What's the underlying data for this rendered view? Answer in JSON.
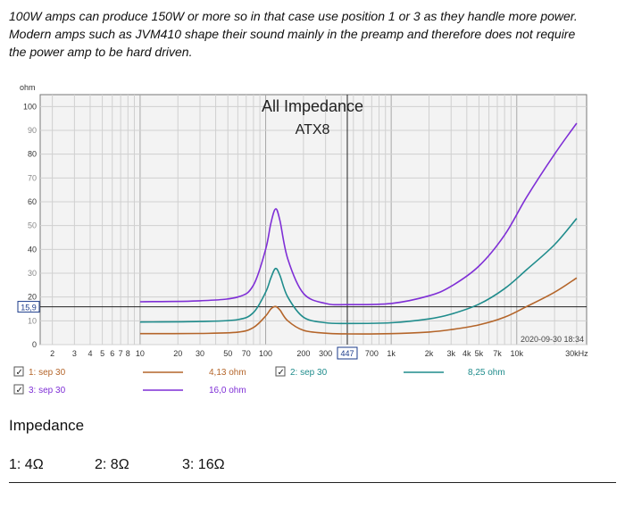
{
  "article": {
    "intro_lines": [
      "100W amps can produce 150W or more so in that case use position 1 or 3 as they handle more power.",
      "Modern amps such as JVM410 shape their sound mainly in the preamp and therefore does not require",
      "the power amp to be hard driven."
    ],
    "heading": "Impedance",
    "ratings": [
      "1: 4Ω",
      "2: 8Ω",
      "3: 16Ω"
    ]
  },
  "chart_data": {
    "type": "line",
    "title": "All Impedance",
    "subtitle": "ATX8",
    "ylabel": "ohm",
    "xunit": "kHz",
    "xscale": "log",
    "xlim": [
      1.6,
      36000
    ],
    "ylim": [
      0,
      105
    ],
    "grid": true,
    "timestamp": "2020-09-30 18:34",
    "cursor": {
      "x_label": "447",
      "y_label": "15,9"
    },
    "y_ticks": [
      "0",
      "10",
      "20",
      "30",
      "40",
      "50",
      "60",
      "70",
      "80",
      "90",
      "100"
    ],
    "x_ticks": [
      {
        "v": 2,
        "label": "2"
      },
      {
        "v": 3,
        "label": "3"
      },
      {
        "v": 4,
        "label": "4"
      },
      {
        "v": 5,
        "label": "5"
      },
      {
        "v": 6,
        "label": "6"
      },
      {
        "v": 7,
        "label": "7"
      },
      {
        "v": 8,
        "label": "8"
      },
      {
        "v": 10,
        "label": "10"
      },
      {
        "v": 20,
        "label": "20"
      },
      {
        "v": 30,
        "label": "30"
      },
      {
        "v": 50,
        "label": "50"
      },
      {
        "v": 70,
        "label": "70"
      },
      {
        "v": 100,
        "label": "100"
      },
      {
        "v": 200,
        "label": "200"
      },
      {
        "v": 300,
        "label": "300"
      },
      {
        "v": 700,
        "label": "700"
      },
      {
        "v": 1000,
        "label": "1k"
      },
      {
        "v": 2000,
        "label": "2k"
      },
      {
        "v": 3000,
        "label": "3k"
      },
      {
        "v": 4000,
        "label": "4k"
      },
      {
        "v": 5000,
        "label": "5k"
      },
      {
        "v": 7000,
        "label": "7k"
      },
      {
        "v": 10000,
        "label": "10k"
      },
      {
        "v": 30000,
        "label": "30kHz"
      }
    ],
    "series": [
      {
        "name": "1: sep 30",
        "value_label": "4,13 ohm",
        "color": "#b4652a",
        "points": [
          [
            10,
            4.6
          ],
          [
            30,
            4.7
          ],
          [
            60,
            5.2
          ],
          [
            80,
            7.2
          ],
          [
            100,
            12
          ],
          [
            110,
            15
          ],
          [
            120,
            16
          ],
          [
            130,
            14.5
          ],
          [
            150,
            10
          ],
          [
            200,
            6
          ],
          [
            300,
            4.8
          ],
          [
            447,
            4.5
          ],
          [
            1000,
            4.6
          ],
          [
            2000,
            5.3
          ],
          [
            3000,
            6.3
          ],
          [
            5000,
            8.3
          ],
          [
            8000,
            11.5
          ],
          [
            12000,
            16
          ],
          [
            20000,
            22
          ],
          [
            30000,
            28
          ]
        ]
      },
      {
        "name": "2: sep 30",
        "value_label": "8,25 ohm",
        "color": "#1f8c8c",
        "points": [
          [
            10,
            9.5
          ],
          [
            30,
            9.7
          ],
          [
            60,
            10.5
          ],
          [
            80,
            13.5
          ],
          [
            100,
            22
          ],
          [
            110,
            28
          ],
          [
            120,
            32
          ],
          [
            130,
            29
          ],
          [
            150,
            20
          ],
          [
            200,
            11.5
          ],
          [
            300,
            9.2
          ],
          [
            447,
            8.9
          ],
          [
            1000,
            9.2
          ],
          [
            2000,
            10.8
          ],
          [
            3000,
            12.8
          ],
          [
            5000,
            17
          ],
          [
            8000,
            23.5
          ],
          [
            12000,
            31.5
          ],
          [
            20000,
            42
          ],
          [
            30000,
            53
          ]
        ]
      },
      {
        "name": "3: sep 30",
        "value_label": "16,0 ohm",
        "color": "#7f2fd6",
        "points": [
          [
            10,
            18
          ],
          [
            30,
            18.4
          ],
          [
            60,
            20
          ],
          [
            80,
            25
          ],
          [
            100,
            40
          ],
          [
            110,
            51
          ],
          [
            120,
            57
          ],
          [
            130,
            52
          ],
          [
            150,
            36
          ],
          [
            200,
            21.5
          ],
          [
            300,
            17.3
          ],
          [
            447,
            16.8
          ],
          [
            1000,
            17.3
          ],
          [
            2000,
            20.5
          ],
          [
            3000,
            24.5
          ],
          [
            5000,
            33
          ],
          [
            8000,
            46
          ],
          [
            12000,
            62
          ],
          [
            20000,
            80
          ],
          [
            30000,
            93
          ]
        ]
      }
    ]
  },
  "colors": {
    "plot_bg": "#f3f3f3",
    "grid_minor": "#d0d0d0",
    "grid_major": "#a8a8a8",
    "cursor": "#1a3a8a"
  }
}
